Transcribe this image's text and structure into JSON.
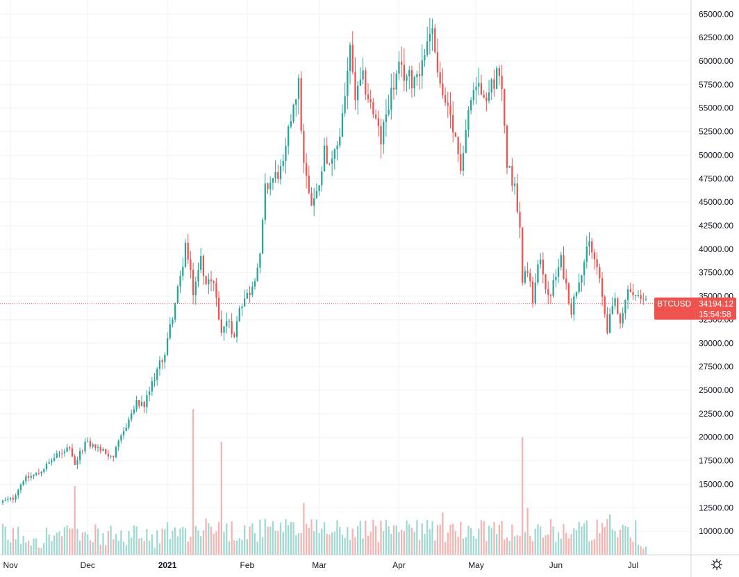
{
  "chart_data": {
    "type": "candlestick",
    "symbol": "BTCUSD",
    "last_price": "34194.12",
    "countdown": "15:54:58",
    "price_ticks": [
      10000,
      12500,
      15000,
      17500,
      20000,
      22500,
      25000,
      27500,
      30000,
      32500,
      35000,
      37500,
      40000,
      42500,
      45000,
      47500,
      50000,
      52500,
      55000,
      57500,
      60000,
      62500,
      65000
    ],
    "price_tick_labels": [
      "10000.00",
      "12500.00",
      "15000.00",
      "17500.00",
      "20000.00",
      "22500.00",
      "25000.00",
      "27500.00",
      "30000.00",
      "32500.00",
      "35000.00",
      "37500.00",
      "40000.00",
      "42500.00",
      "45000.00",
      "47500.00",
      "50000.00",
      "52500.00",
      "55000.00",
      "57500.00",
      "60000.00",
      "62500.00",
      "65000.00"
    ],
    "x_ticks": [
      {
        "label": "Nov",
        "date": "2020-11-01",
        "bold": false
      },
      {
        "label": "Dec",
        "date": "2020-12-01",
        "bold": false
      },
      {
        "label": "2021",
        "date": "2021-01-01",
        "bold": true
      },
      {
        "label": "Feb",
        "date": "2021-02-01",
        "bold": false
      },
      {
        "label": "Mar",
        "date": "2021-03-01",
        "bold": false
      },
      {
        "label": "Apr",
        "date": "2021-04-01",
        "bold": false
      },
      {
        "label": "May",
        "date": "2021-05-01",
        "bold": false
      },
      {
        "label": "Jun",
        "date": "2021-06-01",
        "bold": false
      },
      {
        "label": "Jul",
        "date": "2021-07-01",
        "bold": false
      }
    ],
    "close_path": [
      [
        "2020-10-28",
        13100
      ],
      [
        "2020-11-02",
        13500
      ],
      [
        "2020-11-06",
        15500
      ],
      [
        "2020-11-12",
        16200
      ],
      [
        "2020-11-18",
        17800
      ],
      [
        "2020-11-24",
        19100
      ],
      [
        "2020-11-26",
        17100
      ],
      [
        "2020-11-30",
        19400
      ],
      [
        "2020-12-04",
        19000
      ],
      [
        "2020-12-08",
        18300
      ],
      [
        "2020-12-11",
        18000
      ],
      [
        "2020-12-16",
        21300
      ],
      [
        "2020-12-20",
        23600
      ],
      [
        "2020-12-23",
        23300
      ],
      [
        "2020-12-27",
        26500
      ],
      [
        "2020-12-31",
        29000
      ],
      [
        "2021-01-03",
        33000
      ],
      [
        "2021-01-06",
        36800
      ],
      [
        "2021-01-08",
        40500
      ],
      [
        "2021-01-11",
        35500
      ],
      [
        "2021-01-14",
        39000
      ],
      [
        "2021-01-16",
        36500
      ],
      [
        "2021-01-19",
        36200
      ],
      [
        "2021-01-22",
        31500
      ],
      [
        "2021-01-25",
        32500
      ],
      [
        "2021-01-27",
        30500
      ],
      [
        "2021-01-29",
        34000
      ],
      [
        "2021-02-02",
        35500
      ],
      [
        "2021-02-06",
        39000
      ],
      [
        "2021-02-08",
        46300
      ],
      [
        "2021-02-11",
        47500
      ],
      [
        "2021-02-15",
        48600
      ],
      [
        "2021-02-19",
        55800
      ],
      [
        "2021-02-21",
        57400
      ],
      [
        "2021-02-23",
        48800
      ],
      [
        "2021-02-26",
        45000
      ],
      [
        "2021-02-28",
        45800
      ],
      [
        "2021-03-03",
        50500
      ],
      [
        "2021-03-06",
        48800
      ],
      [
        "2021-03-09",
        52300
      ],
      [
        "2021-03-13",
        61000
      ],
      [
        "2021-03-15",
        56000
      ],
      [
        "2021-03-18",
        58000
      ],
      [
        "2021-03-22",
        54500
      ],
      [
        "2021-03-25",
        51500
      ],
      [
        "2021-03-28",
        55800
      ],
      [
        "2021-04-01",
        59000
      ],
      [
        "2021-04-06",
        58000
      ],
      [
        "2021-04-10",
        59800
      ],
      [
        "2021-04-13",
        63500
      ],
      [
        "2021-04-14",
        62900
      ],
      [
        "2021-04-18",
        56200
      ],
      [
        "2021-04-21",
        53500
      ],
      [
        "2021-04-25",
        49000
      ],
      [
        "2021-04-28",
        54800
      ],
      [
        "2021-05-01",
        57700
      ],
      [
        "2021-05-06",
        56500
      ],
      [
        "2021-05-09",
        58800
      ],
      [
        "2021-05-11",
        56700
      ],
      [
        "2021-05-13",
        49500
      ],
      [
        "2021-05-16",
        46400
      ],
      [
        "2021-05-18",
        42900
      ],
      [
        "2021-05-19",
        37000
      ],
      [
        "2021-05-21",
        37300
      ],
      [
        "2021-05-23",
        34700
      ],
      [
        "2021-05-26",
        39300
      ],
      [
        "2021-05-29",
        34600
      ],
      [
        "2021-06-03",
        38800
      ],
      [
        "2021-06-07",
        33500
      ],
      [
        "2021-06-10",
        37000
      ],
      [
        "2021-06-14",
        40500
      ],
      [
        "2021-06-17",
        38000
      ],
      [
        "2021-06-21",
        31600
      ],
      [
        "2021-06-24",
        34600
      ],
      [
        "2021-06-26",
        31600
      ],
      [
        "2021-06-29",
        35800
      ],
      [
        "2021-07-03",
        34700
      ],
      [
        "2021-07-06",
        34194
      ]
    ],
    "volume_ticks_note": "",
    "volume_spikes": [
      [
        "2020-11-26",
        14800
      ],
      [
        "2021-01-11",
        23000
      ],
      [
        "2021-01-21",
        11000
      ],
      [
        "2021-01-22",
        19500
      ],
      [
        "2021-02-23",
        13000
      ],
      [
        "2021-04-18",
        12000
      ],
      [
        "2021-05-19",
        20000
      ],
      [
        "2021-05-21",
        12500
      ],
      [
        "2021-06-22",
        11800
      ]
    ],
    "price_range": [
      7500,
      66500
    ],
    "date_range": [
      "2020-10-29",
      "2021-07-06"
    ],
    "grid": true
  },
  "ui": {
    "settings_icon": "gear-icon"
  },
  "colors": {
    "up": "#26a69a",
    "down": "#ef5350",
    "up_volume": "#9fd9d2",
    "down_volume": "#f4b4b2",
    "price_line": "#ef5350",
    "grid": "#f0f3fa",
    "axis_border": "#d1d4dc"
  }
}
